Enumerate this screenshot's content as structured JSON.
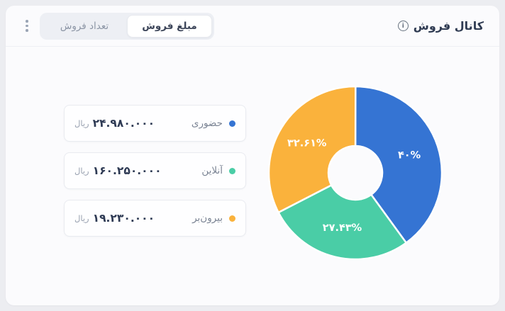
{
  "header": {
    "title": "کانال فروش",
    "info_glyph": "i",
    "tabs": [
      {
        "label": "مبلغ فروش",
        "active": true
      },
      {
        "label": "تعداد فروش",
        "active": false
      }
    ]
  },
  "legend": [
    {
      "label": "حضوری",
      "value": "۲۴.۹۸۰.۰۰۰",
      "unit": "ریال",
      "color": "#3574d3"
    },
    {
      "label": "آنلاین",
      "value": "۱۶۰.۲۵۰.۰۰۰",
      "unit": "ریال",
      "color": "#4acda6"
    },
    {
      "label": "بیرون‌بر",
      "value": "۱۹.۲۳۰.۰۰۰",
      "unit": "ریال",
      "color": "#fab23c"
    }
  ],
  "chart_data": {
    "type": "pie",
    "subtype": "donut",
    "title": "کانال فروش",
    "labels": [
      "حضوری",
      "آنلاین",
      "بیرون‌بر"
    ],
    "values_percent": [
      40,
      27.43,
      32.61
    ],
    "value_labels": [
      "۴۰%",
      "۲۷.۴۳%",
      "۳۲.۶۱%"
    ],
    "amounts_rial": [
      24980000,
      160250000,
      19230000
    ],
    "unit": "ریال",
    "colors": [
      "#3574d3",
      "#4acda6",
      "#fab23c"
    ],
    "start_angle_deg": 0,
    "direction": "clockwise",
    "inner_radius_ratio": 0.31,
    "slice_gap_stroke": "#ffffff",
    "legend_position": "left"
  },
  "theme": {
    "page_bg": "#ecedf1",
    "card_bg": "#fbfbfd",
    "divider": "#eef0f4",
    "tab_group_bg": "#edeff4",
    "title_color": "#2f3b52",
    "muted_text": "#8d96a6"
  }
}
